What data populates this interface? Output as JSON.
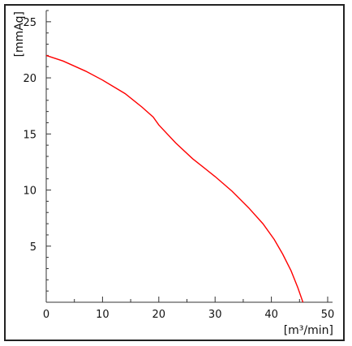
{
  "chart_data": {
    "type": "line",
    "xlabel": "[m³/min]",
    "ylabel": "[mmAq]",
    "xlim": [
      0,
      50
    ],
    "ylim": [
      0,
      26
    ],
    "x_ticks": [
      0,
      10,
      20,
      30,
      40,
      50
    ],
    "y_ticks": [
      5,
      10,
      15,
      20,
      25
    ],
    "grid": false,
    "series_color": "#ff0000",
    "series": [
      {
        "points": [
          [
            0,
            22.0
          ],
          [
            3,
            21.5
          ],
          [
            7,
            20.6
          ],
          [
            10,
            19.8
          ],
          [
            14,
            18.6
          ],
          [
            17,
            17.4
          ],
          [
            19,
            16.5
          ],
          [
            20,
            15.8
          ],
          [
            23,
            14.2
          ],
          [
            26,
            12.8
          ],
          [
            30,
            11.2
          ],
          [
            33,
            9.9
          ],
          [
            36,
            8.4
          ],
          [
            38.5,
            7.0
          ],
          [
            40.5,
            5.6
          ],
          [
            42,
            4.3
          ],
          [
            43.5,
            2.8
          ],
          [
            44.7,
            1.3
          ],
          [
            45.6,
            0.0
          ]
        ]
      }
    ]
  }
}
